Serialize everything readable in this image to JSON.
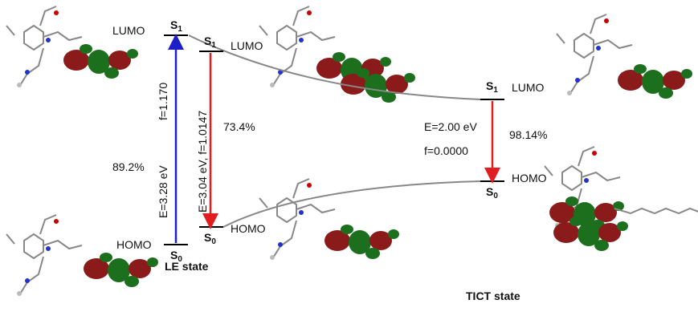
{
  "levels": {
    "le_lumo": {
      "state": {
        "base": "S",
        "sub": "1"
      },
      "orbital": "LUMO"
    },
    "le_homo": {
      "state": {
        "base": "S",
        "sub": "0"
      },
      "orbital": "HOMO"
    },
    "le2_lumo": {
      "state": {
        "base": "S",
        "sub": "1"
      },
      "orbital": "LUMO"
    },
    "le2_homo": {
      "state": {
        "base": "S",
        "sub": "0"
      },
      "orbital": "HOMO"
    },
    "tict_lumo": {
      "state": {
        "base": "S",
        "sub": "1"
      },
      "orbital": "LUMO"
    },
    "tict_homo": {
      "state": {
        "base": "S",
        "sub": "0"
      },
      "orbital": "HOMO"
    }
  },
  "transitions": {
    "absorption": {
      "oscillator": "f=1.170",
      "energy": "E=3.28 eV",
      "contribution": "89.2%"
    },
    "emission_le": {
      "energy_oscillator": "E=3.04 eV, f=1.0147",
      "contribution": "73.4%"
    },
    "emission_tict": {
      "energy": "E=2.00 eV",
      "oscillator": "f=0.0000",
      "contribution": "98.14%"
    }
  },
  "states": {
    "le": "LE state",
    "tict": "TICT state"
  }
}
